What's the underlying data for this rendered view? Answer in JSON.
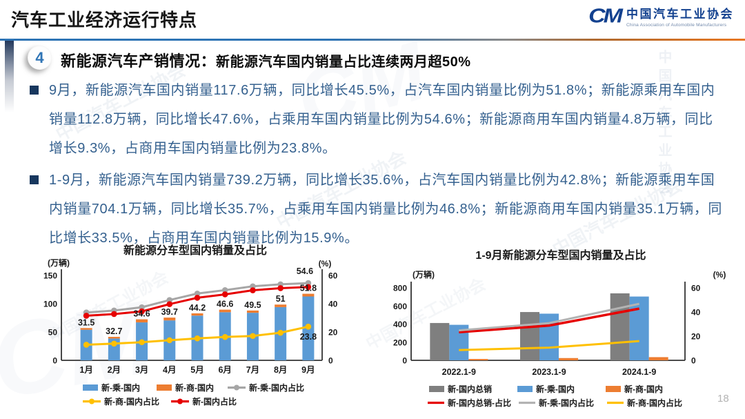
{
  "header": {
    "title": "汽车工业经济运行特点",
    "logo": {
      "mark": "CM",
      "name_cn": "中国汽车工业协会",
      "name_en": "China Association of Automobile Manufacturers"
    }
  },
  "section": {
    "number": "4",
    "heading_main": "新能源汽车产销情况：",
    "heading_sub": "新能源汽车国内销量占比连续两月超50%"
  },
  "bullets": [
    "9月，新能源汽车国内销量117.6万辆，同比增长45.5%，占汽车国内销量比例为51.8%；新能源乘用车国内销量112.8万辆，同比增长47.6%，占乘用车国内销量比例为54.6%；新能源商用车国内销量4.8万辆，同比增长9.3%，占商用车国内销量比例为23.8%。",
    "1-9月，新能源汽车国内销量739.2万辆，同比增长35.6%，占汽车国内销量比例为42.8%；新能源乘用车国内销量704.1万辆，同比增长35.7%，占乘用车国内销量比例为46.8%；新能源商用车国内销量35.1万辆，同比增长33.5%，占商用车国内销量比例为15.9%。"
  ],
  "watermark": {
    "text": "中国汽车工业协会",
    "mark": "CM"
  },
  "page_number": "18",
  "colors": {
    "accent_blue": "#2E74B5",
    "body_text": "#35618F",
    "bullet_marker": "#17375E",
    "rule_orange": "#E87722",
    "logo_blue": "#13418F"
  },
  "chart_data": [
    {
      "type": "bar",
      "subtype": "stacked-bar-line-combo",
      "title": "新能源分车型国内销量及占比",
      "axis_left": {
        "unit": "(万辆)",
        "range": [
          0,
          150
        ],
        "ticks": [
          0,
          50,
          100,
          150
        ]
      },
      "axis_right": {
        "unit": "(%)",
        "range": [
          0,
          60
        ],
        "ticks": [
          0,
          20,
          40,
          60
        ]
      },
      "categories": [
        "1月",
        "2月",
        "3月",
        "4月",
        "5月",
        "6月",
        "7月",
        "8月",
        "9月"
      ],
      "bar_mode": "stacked",
      "bar_series": [
        {
          "name": "新-乘-国内",
          "color": "#5B9BD5",
          "values": [
            54,
            38.5,
            67,
            70.5,
            79,
            85,
            84,
            94,
            112.8
          ]
        },
        {
          "name": "新-商-国内",
          "color": "#ED7D31",
          "values": [
            3,
            3,
            5.5,
            5,
            4,
            4.5,
            4,
            4.5,
            4.8
          ]
        }
      ],
      "line_series": [
        {
          "name": "新-乘-国内占比",
          "color": "#A6A6A6",
          "width": 3,
          "marker": true,
          "values": [
            33.8,
            35.2,
            37.5,
            42.6,
            47.2,
            49.6,
            52.3,
            53.7,
            54.6
          ],
          "label_mode": "last-above",
          "last_label": "54.6"
        },
        {
          "name": "新-商-国内占比",
          "color": "#FFC000",
          "width": 3,
          "marker": true,
          "values": [
            11,
            11.8,
            12.8,
            14.2,
            15.5,
            16.5,
            17.2,
            19.5,
            23.8
          ],
          "label_mode": "last-below",
          "last_label": "23.8"
        },
        {
          "name": "新-国内占比",
          "color": "#E60000",
          "width": 3,
          "marker": true,
          "values": [
            31.5,
            32.7,
            34.6,
            39.7,
            44.2,
            46.6,
            49.5,
            51,
            51.8
          ],
          "label_mode": "bar-top",
          "labels": [
            "31.5",
            "32.7",
            "34.6",
            "39.7",
            "44.2",
            "46.6",
            "49.5",
            "51",
            "51.8"
          ]
        }
      ],
      "legend_rows": [
        [
          "bar:0",
          "bar:1",
          "line:0"
        ],
        [
          "line:1",
          "line:2"
        ]
      ]
    },
    {
      "type": "bar",
      "subtype": "grouped-bar-line-combo",
      "title": "1-9月新能源分车型国内销量及占比",
      "axis_left": {
        "unit": "(万辆)",
        "range": [
          0,
          800
        ],
        "ticks": [
          0,
          200,
          400,
          600,
          800
        ]
      },
      "axis_right": {
        "unit": "(%)",
        "range": [
          0,
          60
        ],
        "ticks": [
          0,
          20,
          40,
          60
        ]
      },
      "categories": [
        "2022.1-9",
        "2023.1-9",
        "2024.1-9"
      ],
      "bar_mode": "grouped",
      "bar_series": [
        {
          "name": "新-国内总销",
          "color": "#7F7F7F",
          "values": [
            412,
            533,
            739.2
          ]
        },
        {
          "name": "新-乘-国内",
          "color": "#5B9BD5",
          "values": [
            392,
            515,
            704.1
          ]
        },
        {
          "name": "新-商-国内",
          "color": "#ED7D31",
          "values": [
            15,
            25,
            35.1
          ]
        }
      ],
      "line_series": [
        {
          "name": "新-国内总销-占比",
          "color": "#E60000",
          "width": 3.5,
          "marker": false,
          "values": [
            23.3,
            28.8,
            42.8
          ]
        },
        {
          "name": "新-乘-国内占比",
          "color": "#B3B3B3",
          "width": 3,
          "marker": false,
          "values": [
            24.8,
            30.8,
            46.8
          ]
        },
        {
          "name": "新-商-国内占比",
          "color": "#FFC000",
          "width": 3,
          "marker": false,
          "values": [
            8.5,
            10.5,
            15.9
          ]
        }
      ],
      "legend_rows": [
        [
          "bar:0",
          "bar:1",
          "bar:2"
        ],
        [
          "line:0",
          "line:1",
          "line:2"
        ]
      ]
    }
  ]
}
